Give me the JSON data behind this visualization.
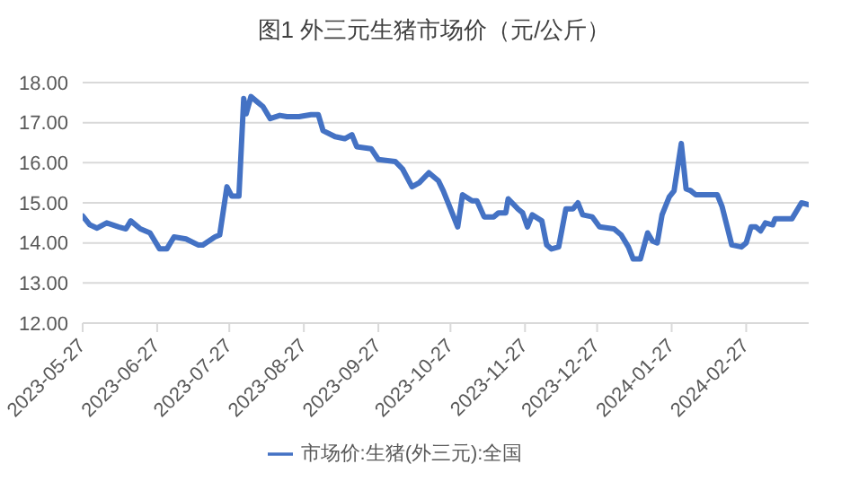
{
  "chart_data": {
    "type": "line",
    "title": "图1 外三元生猪市场价（元/公斤）",
    "x": [
      "2023-05-27",
      "2023-05-30",
      "2023-06-02",
      "2023-06-06",
      "2023-06-11",
      "2023-06-14",
      "2023-06-16",
      "2023-06-20",
      "2023-06-24",
      "2023-06-28",
      "2023-07-01",
      "2023-07-04",
      "2023-07-09",
      "2023-07-14",
      "2023-07-16",
      "2023-07-21",
      "2023-07-23",
      "2023-07-26",
      "2023-07-28",
      "2023-07-31",
      "2023-08-02",
      "2023-08-03",
      "2023-08-05",
      "2023-08-08",
      "2023-08-10",
      "2023-08-13",
      "2023-08-17",
      "2023-08-20",
      "2023-08-25",
      "2023-08-30",
      "2023-09-02",
      "2023-09-04",
      "2023-09-09",
      "2023-09-13",
      "2023-09-16",
      "2023-09-18",
      "2023-09-24",
      "2023-09-27",
      "2023-10-04",
      "2023-10-07",
      "2023-10-11",
      "2023-10-14",
      "2023-10-18",
      "2023-10-22",
      "2023-10-24",
      "2023-10-27",
      "2023-10-30",
      "2023-11-01",
      "2023-11-05",
      "2023-11-07",
      "2023-11-10",
      "2023-11-14",
      "2023-11-16",
      "2023-11-19",
      "2023-11-20",
      "2023-11-24",
      "2023-11-26",
      "2023-11-28",
      "2023-11-30",
      "2023-12-04",
      "2023-12-06",
      "2023-12-08",
      "2023-12-11",
      "2023-12-14",
      "2023-12-17",
      "2023-12-19",
      "2023-12-21",
      "2023-12-25",
      "2023-12-28",
      "2024-01-03",
      "2024-01-06",
      "2024-01-09",
      "2024-01-11",
      "2024-01-14",
      "2024-01-17",
      "2024-01-19",
      "2024-01-21",
      "2024-01-23",
      "2024-01-26",
      "2024-01-28",
      "2024-01-31",
      "2024-02-02",
      "2024-02-04",
      "2024-02-06",
      "2024-02-15",
      "2024-02-17",
      "2024-02-21",
      "2024-02-25",
      "2024-02-27",
      "2024-02-29",
      "2024-03-02",
      "2024-03-04",
      "2024-03-06",
      "2024-03-09",
      "2024-03-10",
      "2024-03-17",
      "2024-03-21",
      "2024-03-24"
    ],
    "series": [
      {
        "name": "市场价:生猪(外三元):全国",
        "color": "#4472c4",
        "values": [
          14.67,
          14.45,
          14.37,
          14.5,
          14.4,
          14.35,
          14.55,
          14.35,
          14.25,
          13.85,
          13.85,
          14.15,
          14.1,
          13.95,
          13.95,
          14.15,
          14.2,
          15.4,
          15.17,
          15.17,
          17.6,
          17.22,
          17.65,
          17.5,
          17.4,
          17.1,
          17.18,
          17.15,
          17.15,
          17.2,
          17.2,
          16.8,
          16.65,
          16.6,
          16.7,
          16.4,
          16.35,
          16.08,
          16.03,
          15.85,
          15.4,
          15.5,
          15.75,
          15.55,
          15.3,
          14.85,
          14.4,
          15.2,
          15.05,
          15.05,
          14.65,
          14.65,
          14.75,
          14.75,
          15.1,
          14.85,
          14.75,
          14.4,
          14.7,
          14.55,
          13.95,
          13.85,
          13.9,
          14.85,
          14.85,
          15.0,
          14.7,
          14.65,
          14.4,
          14.35,
          14.2,
          13.9,
          13.6,
          13.6,
          14.25,
          14.05,
          14.0,
          14.7,
          15.15,
          15.3,
          16.48,
          15.35,
          15.3,
          15.2,
          15.2,
          14.9,
          13.95,
          13.9,
          14.0,
          14.4,
          14.4,
          14.3,
          14.5,
          14.45,
          14.6,
          14.6,
          15.0,
          14.95
        ]
      }
    ],
    "xlim": [
      "2023-05-27",
      "2024-03-24"
    ],
    "xticks": [
      "2023-05-27",
      "2023-06-27",
      "2023-07-27",
      "2023-08-27",
      "2023-09-27",
      "2023-10-27",
      "2023-11-27",
      "2023-12-27",
      "2024-01-27",
      "2024-02-27"
    ],
    "ylim": [
      12,
      18
    ],
    "yticks": [
      {
        "value": 12,
        "label": "12.00"
      },
      {
        "value": 13,
        "label": "13.00"
      },
      {
        "value": 14,
        "label": "14.00"
      },
      {
        "value": 15,
        "label": "15.00"
      },
      {
        "value": 16,
        "label": "16.00"
      },
      {
        "value": 17,
        "label": "17.00"
      },
      {
        "value": 18,
        "label": "18.00"
      }
    ],
    "grid": "y",
    "legend": "bottom",
    "marker": "none",
    "line_style": "solid"
  }
}
